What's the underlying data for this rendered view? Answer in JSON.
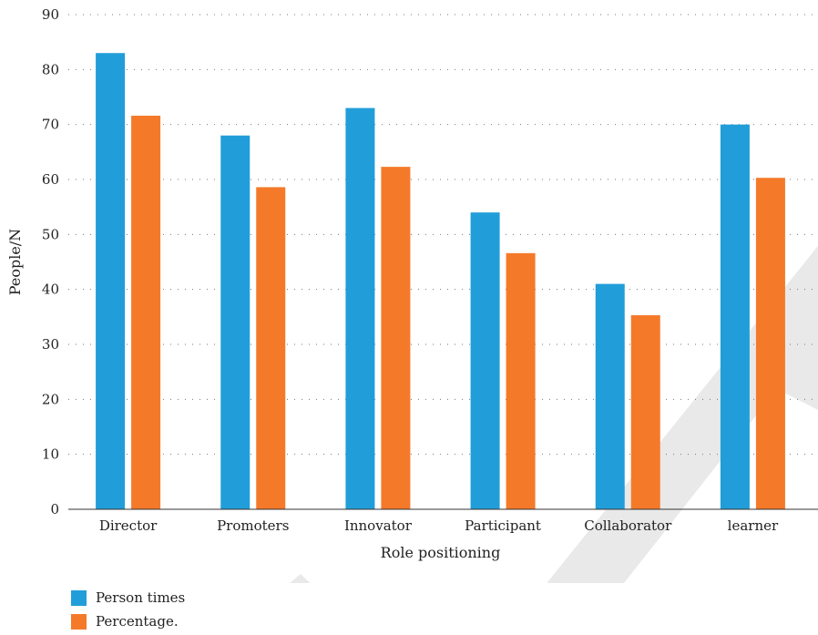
{
  "chart_data": {
    "type": "bar",
    "title": "",
    "xlabel": "Role positioning",
    "ylabel": "People/N",
    "ylim": [
      0,
      90
    ],
    "yticks": [
      0,
      10,
      20,
      30,
      40,
      50,
      60,
      70,
      80,
      90
    ],
    "grid": "dotted horizontal",
    "legend_position": "bottom-left",
    "categories": [
      "Director",
      "Promoters",
      "Innovator",
      "Participant",
      "Collaborator",
      "learner"
    ],
    "series": [
      {
        "name": "Person times",
        "color": "#219ed9",
        "values": [
          83,
          68,
          73,
          54,
          41,
          70
        ]
      },
      {
        "name": "Percentage.",
        "color": "#f47a2a",
        "values": [
          71.6,
          58.6,
          62.3,
          46.6,
          35.3,
          60.3
        ]
      }
    ]
  }
}
